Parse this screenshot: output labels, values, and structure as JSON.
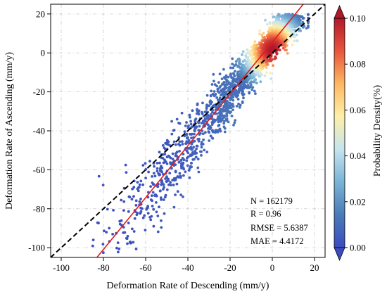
{
  "chart_data": {
    "type": "scatter",
    "title": "",
    "xlabel": "Deformation Rate of Descending (mm/y)",
    "ylabel": "Deformation Rate of Ascending (mm/y)",
    "xlim": [
      -105,
      25
    ],
    "ylim": [
      -105,
      25
    ],
    "xticks": [
      -100,
      -80,
      -60,
      -40,
      -20,
      0,
      20
    ],
    "yticks": [
      -100,
      -80,
      -60,
      -40,
      -20,
      0,
      20
    ],
    "grid": true,
    "reference_line": {
      "style": "dashed",
      "color": "#000000",
      "slope": 1,
      "intercept": 0
    },
    "fit_line": {
      "style": "solid",
      "color": "#e31a1c",
      "slope": 1.33,
      "intercept": 5.5
    },
    "colorbar": {
      "label": "Probability Density(%)",
      "min": 0.0,
      "max": 0.1,
      "ticks": [
        "0.00",
        "0.02",
        "0.04",
        "0.06",
        "0.08",
        "0.10"
      ],
      "colormap": [
        "#3b4cc0",
        "#4a7bb7",
        "#7ab3d6",
        "#c5e4ef",
        "#fdf0a8",
        "#fdb863",
        "#e8553d",
        "#b2182b"
      ]
    },
    "stats": {
      "n": "N = 162179",
      "r": "R = 0.96",
      "rmse": "RMSE = 5.6387",
      "mae": "MAE = 4.4172"
    },
    "density_core": {
      "x_range": [
        -14,
        14
      ],
      "y_range": [
        -15,
        18
      ]
    }
  }
}
